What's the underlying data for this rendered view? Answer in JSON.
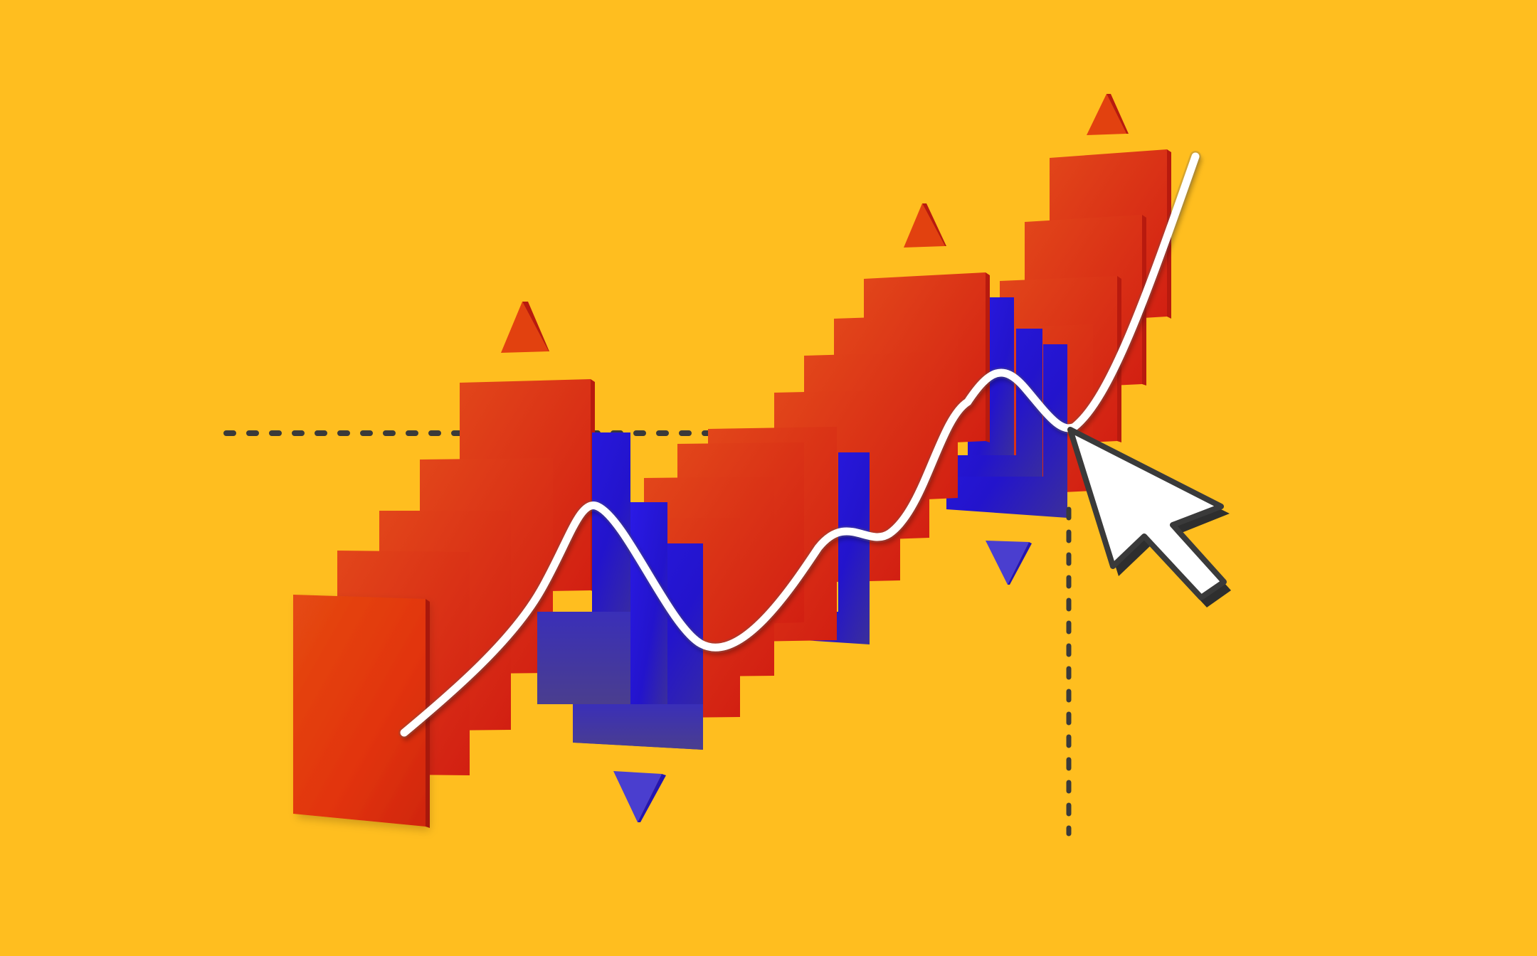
{
  "scene": {
    "background_color": "#FFBE1F",
    "up_color": "#E23A10",
    "down_color": "#2415D6",
    "line_color": "#FFFFFF",
    "guide_color": "#3A3A3A",
    "cursor_icon": "mouse-pointer-icon",
    "up_marker_icon": "triangle-up-icon",
    "down_marker_icon": "triangle-down-icon"
  }
}
